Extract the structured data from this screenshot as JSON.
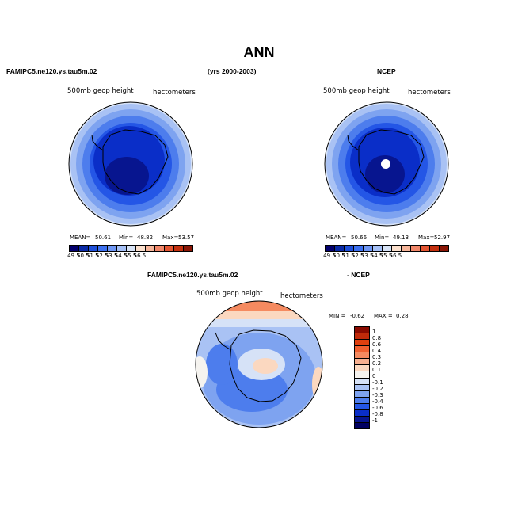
{
  "page": {
    "title": "ANN",
    "left_case": "FAMIPC5.ne120.ys.tau5m.02",
    "years": "(yrs 2000-2003)",
    "right_case": "NCEP",
    "diff_case": "FAMIPC5.ne120.ys.tau5m.02",
    "diff_suffix": "- NCEP"
  },
  "chart_data": [
    {
      "type": "heatmap",
      "title": "500mb geop height",
      "units": "hectometers",
      "projection": "south-polar stereographic",
      "case": "FAMIPC5.ne120.ys.tau5m.02",
      "stats": {
        "mean_label": "MEAN=",
        "mean": "50.61",
        "min_label": "Min=",
        "min": "48.82",
        "max_label": "Max=",
        "max": "53.57"
      },
      "colorbar_ticks": [
        "49.5",
        "50.5",
        "51.5",
        "52.5",
        "53.5",
        "54.5",
        "55.5",
        "56.5"
      ],
      "colorbar_colors": [
        "#03006d",
        "#0a2aa6",
        "#1e4fd9",
        "#3c70f0",
        "#6f97f5",
        "#a6c1f7",
        "#d8e4f7",
        "#fbe0cd",
        "#f6b59a",
        "#f1876a",
        "#e35532",
        "#c3300f",
        "#8a1606"
      ]
    },
    {
      "type": "heatmap",
      "title": "500mb geop height",
      "units": "hectometers",
      "projection": "south-polar stereographic",
      "case": "NCEP",
      "stats": {
        "mean_label": "MEAN=",
        "mean": "50.66",
        "min_label": "Min=",
        "min": "49.13",
        "max_label": "Max=",
        "max": "52.97"
      },
      "colorbar_ticks": [
        "49.5",
        "50.5",
        "51.5",
        "52.5",
        "53.5",
        "54.5",
        "55.5",
        "56.5"
      ],
      "colorbar_colors": [
        "#03006d",
        "#0a2aa6",
        "#1e4fd9",
        "#3c70f0",
        "#6f97f5",
        "#a6c1f7",
        "#d8e4f7",
        "#fbe0cd",
        "#f6b59a",
        "#f1876a",
        "#e35532",
        "#c3300f",
        "#8a1606"
      ]
    },
    {
      "type": "heatmap",
      "title": "500mb geop height",
      "units": "hectometers",
      "projection": "south-polar stereographic",
      "case": "FAMIPC5.ne120.ys.tau5m.02 - NCEP",
      "stats": {
        "min_label": "MIN =",
        "min": "-0.62",
        "max_label": "MAX =",
        "max": "0.28"
      },
      "colorbar_labels": [
        "1",
        "0.8",
        "0.6",
        "0.4",
        "0.3",
        "0.2",
        "0.1",
        "0",
        "-0.1",
        "-0.2",
        "-0.3",
        "-0.4",
        "-0.6",
        "-0.8",
        "-1"
      ],
      "colorbar_colors": [
        "#8a0a00",
        "#c02a0a",
        "#e0400f",
        "#f06030",
        "#f58a60",
        "#f8b090",
        "#fbd8c0",
        "#f5f3ef",
        "#d6e2f7",
        "#a9c2f4",
        "#7ea3f0",
        "#4d7ded",
        "#2456e6",
        "#0a2ec8",
        "#07158f",
        "#000060"
      ]
    }
  ]
}
